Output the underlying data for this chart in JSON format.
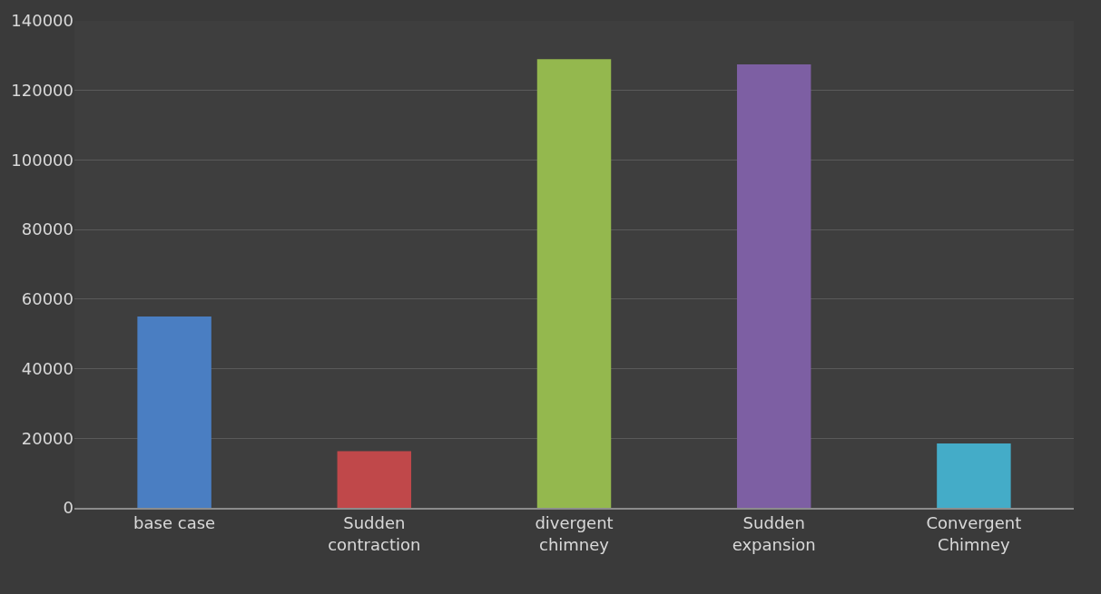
{
  "chart_data": {
    "type": "bar",
    "categories": [
      "base case",
      "Sudden contraction",
      "divergent chimney",
      "Sudden expansion",
      "Convergent Chimney"
    ],
    "values": [
      55000,
      16300,
      129000,
      127500,
      18500
    ],
    "colors": [
      "#4a7ec2",
      "#c0484a",
      "#94b84e",
      "#7d5fa3",
      "#44acc8"
    ],
    "ylim": [
      0,
      140000
    ],
    "yticks": [
      0,
      20000,
      40000,
      60000,
      80000,
      100000,
      120000,
      140000
    ],
    "grid": "y",
    "legend": false
  }
}
